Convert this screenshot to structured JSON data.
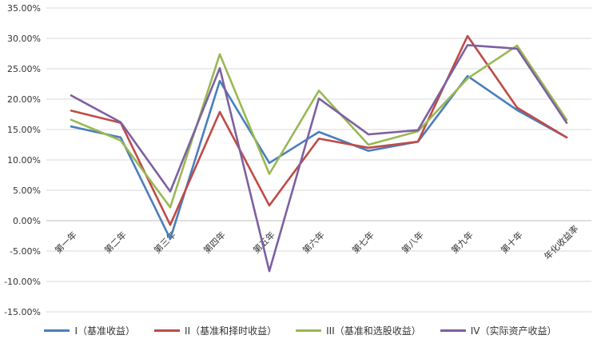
{
  "chart_data": {
    "type": "line",
    "categories": [
      "第一年",
      "第二年",
      "第三年",
      "第四年",
      "第五年",
      "第六年",
      "第七年",
      "第八年",
      "第九年",
      "第十年",
      "年化收益率"
    ],
    "yticks": [
      "35.00%",
      "30.00%",
      "25.00%",
      "20.00%",
      "15.00%",
      "10.00%",
      "5.00%",
      "0.00%",
      "-5.00%",
      "-10.00%",
      "-15.00%"
    ],
    "ylim": [
      -15,
      35
    ],
    "grid": true,
    "legend_position": "bottom",
    "series": [
      {
        "name": "I（基准收益）",
        "color": "#4A7EBB",
        "values": [
          15.5,
          13.7,
          -3.0,
          23.0,
          9.5,
          14.6,
          11.5,
          13.0,
          23.8,
          18.2,
          13.7
        ]
      },
      {
        "name": "II（基准和择时收益）",
        "color": "#BE4B48",
        "values": [
          18.1,
          16.1,
          -0.7,
          17.9,
          2.5,
          13.5,
          12.0,
          13.0,
          30.4,
          18.6,
          13.7
        ]
      },
      {
        "name": "III（基准和选股收益）",
        "color": "#98B954",
        "values": [
          16.6,
          13.2,
          2.2,
          27.4,
          7.7,
          21.4,
          12.5,
          14.7,
          23.4,
          28.8,
          16.6
        ]
      },
      {
        "name": "IV（实际资产收益）",
        "color": "#7D60A0",
        "values": [
          20.6,
          16.2,
          4.8,
          25.1,
          -8.3,
          20.1,
          14.2,
          14.9,
          28.9,
          28.3,
          16.1
        ]
      }
    ]
  }
}
